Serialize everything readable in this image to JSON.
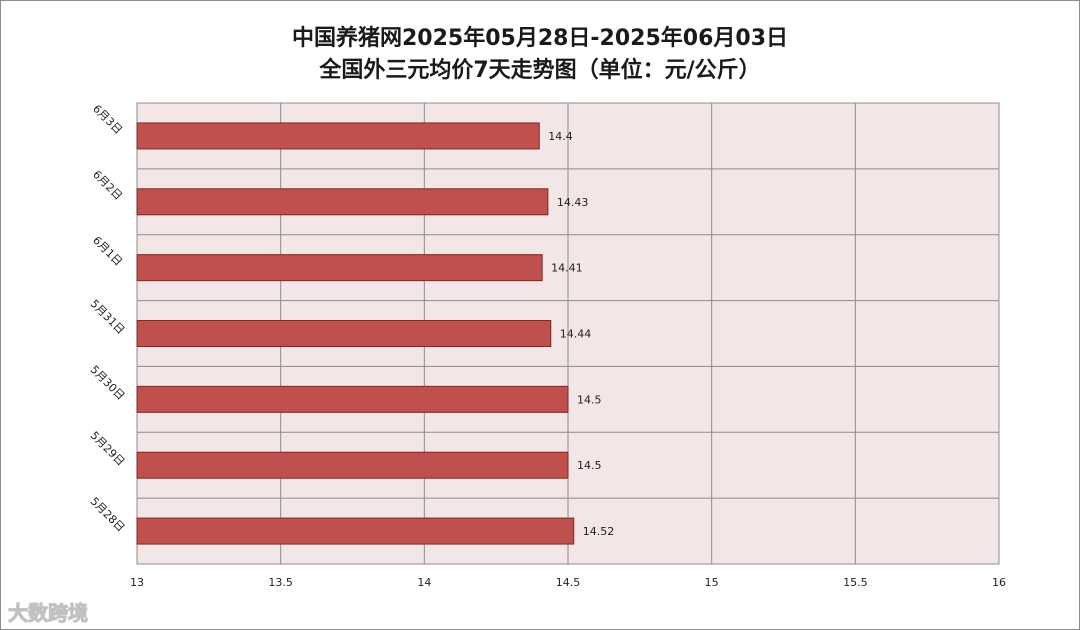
{
  "title": {
    "line1": "中国养猪网2025年05月28日-2025年06月03日",
    "line2": "全国外三元均价7天走势图（单位：元/公斤）"
  },
  "watermark": "大数跨境",
  "colors": {
    "bar_fill": "#c0504d",
    "bar_stroke": "#7a2b29",
    "plot_bg": "#f2e6e6",
    "grid": "#8c8c8c"
  },
  "chart_data": {
    "type": "bar",
    "orientation": "horizontal",
    "categories": [
      "6月3日",
      "6月2日",
      "6月1日",
      "5月31日",
      "5月30日",
      "5月29日",
      "5月28日"
    ],
    "values": [
      14.4,
      14.43,
      14.41,
      14.44,
      14.5,
      14.5,
      14.52
    ],
    "value_labels": [
      "14.4",
      "14.43",
      "14.41",
      "14.44",
      "14.5",
      "14.5",
      "14.52"
    ],
    "xlim": [
      13,
      16
    ],
    "xticks": [
      "13",
      "13.5",
      "14",
      "14.5",
      "15",
      "15.5",
      "16"
    ],
    "grid": true,
    "legend": false
  }
}
